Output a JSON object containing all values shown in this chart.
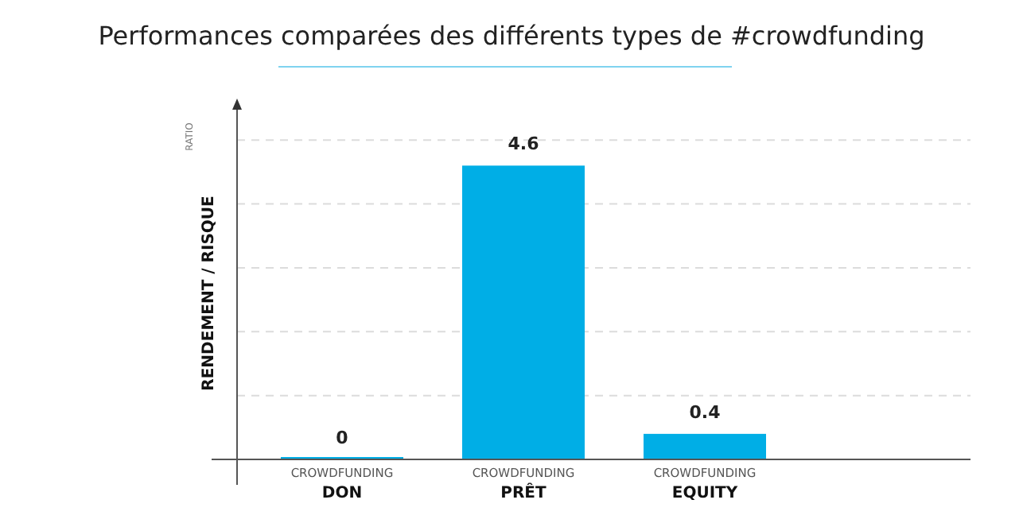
{
  "chart_data": {
    "type": "bar",
    "title": "Performances comparées des différents types de #crowdfunding",
    "ylabel": "RENDEMENT / RISQUE",
    "annotations": [
      "RATIO"
    ],
    "categories": [
      "CROWDFUNDING\nDON",
      "CROWDFUNDING\nPRÊT",
      "CROWDFUNDING\nEQUITY"
    ],
    "values": [
      0,
      4.6,
      0.4
    ],
    "color": "#00aee6",
    "data_labels": true,
    "ylim": [
      0,
      5.6
    ],
    "yticks": [
      {
        "value": 1,
        "label": null
      },
      {
        "value": 2,
        "label": null
      },
      {
        "value": 3,
        "label": null
      },
      {
        "value": 4,
        "label": null
      },
      {
        "value": 5,
        "label": null
      }
    ],
    "grid": "y",
    "tick_labels": "x"
  }
}
